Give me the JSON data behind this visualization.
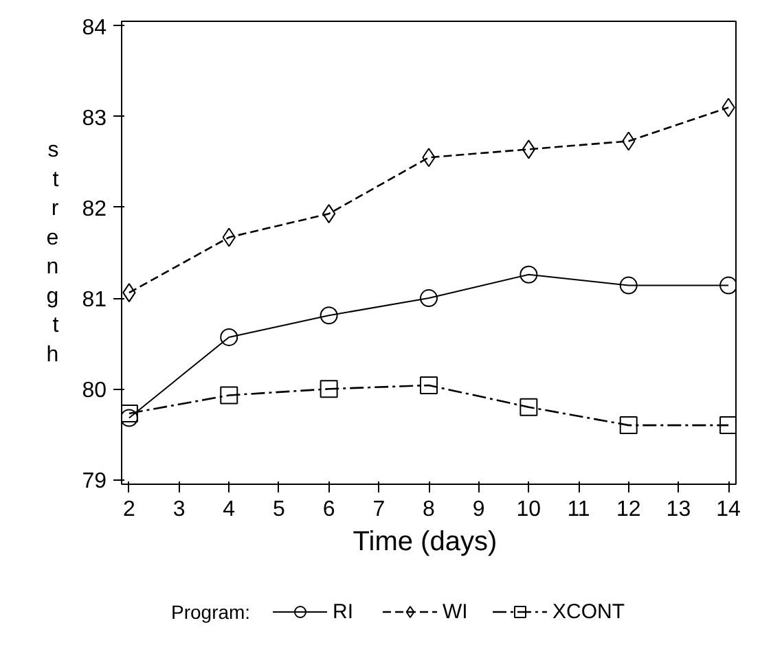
{
  "chart_data": {
    "type": "line",
    "xlabel": "Time  (days)",
    "ylabel": "strength",
    "legend_title": "Program:",
    "legend": "bottom",
    "grid": false,
    "x": [
      2,
      4,
      6,
      8,
      10,
      12,
      14
    ],
    "xlim": [
      1.85,
      14.15
    ],
    "xticks": [
      2,
      3,
      4,
      5,
      6,
      7,
      8,
      9,
      10,
      11,
      12,
      13,
      14
    ],
    "ylim": [
      78.95,
      84.05
    ],
    "yticks": [
      79,
      80,
      81,
      82,
      83,
      84
    ],
    "series": [
      {
        "name": "RI",
        "color": "#000000",
        "marker": "circle",
        "line_style": "solid",
        "values": [
          79.68,
          80.57,
          80.81,
          81.0,
          81.26,
          81.14,
          81.14
        ]
      },
      {
        "name": "WI",
        "color": "#000000",
        "marker": "diamond",
        "line_style": "dashed",
        "values": [
          81.06,
          81.67,
          81.93,
          82.55,
          82.64,
          82.73,
          83.1
        ]
      },
      {
        "name": "XCONT",
        "color": "#000000",
        "marker": "square",
        "line_style": "dashdot",
        "values": [
          79.73,
          79.93,
          80.0,
          80.04,
          79.8,
          79.6,
          79.6
        ]
      }
    ]
  }
}
